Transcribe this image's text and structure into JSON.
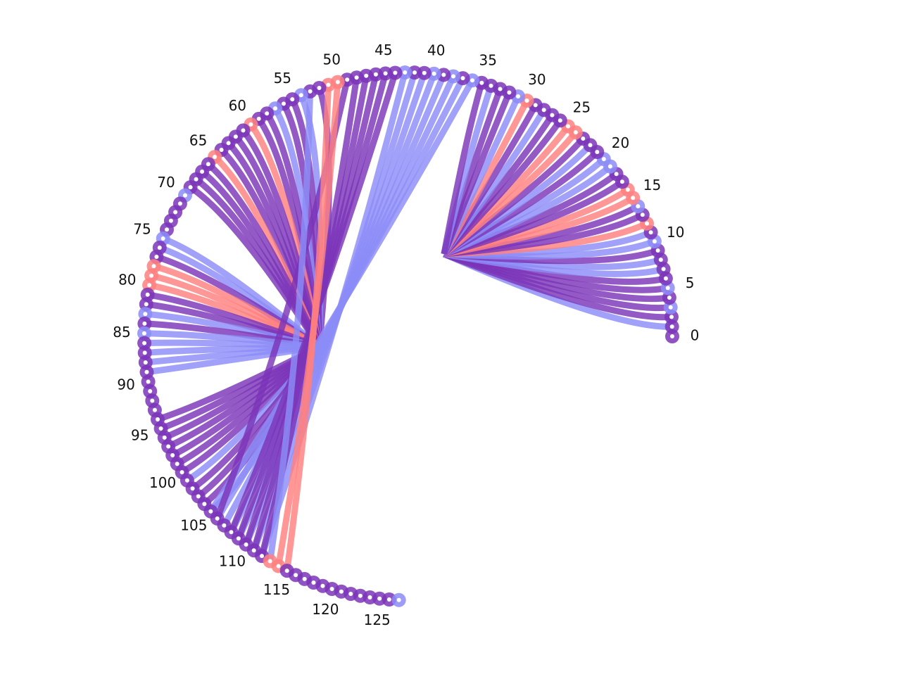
{
  "diagram": {
    "type": "arc-chord",
    "node_count": 128,
    "tick_labels": [
      "0",
      "5",
      "10",
      "15",
      "20",
      "25",
      "30",
      "35",
      "40",
      "45",
      "50",
      "55",
      "60",
      "65",
      "70",
      "75",
      "80",
      "85",
      "90",
      "95",
      "100",
      "105",
      "110",
      "115",
      "120",
      "125"
    ],
    "colors": {
      "purple": "#7b35b8",
      "blue": "#8c8cf8",
      "red": "#ff8080",
      "center_white": "#ffffff"
    },
    "node_rings": [
      "purple",
      "purple",
      "purple",
      "blue",
      "purple",
      "blue",
      "purple",
      "purple",
      "purple",
      "purple",
      "blue",
      "purple",
      "red",
      "purple",
      "blue",
      "red",
      "red",
      "purple",
      "purple",
      "blue",
      "blue",
      "purple",
      "purple",
      "purple",
      "red",
      "red",
      "purple",
      "purple",
      "purple",
      "purple",
      "red",
      "blue",
      "purple",
      "purple",
      "purple",
      "purple",
      "blue",
      "purple",
      "blue",
      "purple",
      "blue",
      "purple",
      "purple",
      "blue",
      "purple",
      "purple",
      "purple",
      "purple",
      "purple",
      "purple",
      "red",
      "red",
      "purple",
      "purple",
      "blue",
      "purple",
      "purple",
      "blue",
      "purple",
      "purple",
      "red",
      "purple",
      "purple",
      "purple",
      "purple",
      "red",
      "purple",
      "purple",
      "purple",
      "purple",
      "blue",
      "purple",
      "purple",
      "purple",
      "purple",
      "blue",
      "purple",
      "purple",
      "red",
      "red",
      "red",
      "purple",
      "purple",
      "blue",
      "purple",
      "blue",
      "purple",
      "purple",
      "purple",
      "purple",
      "purple",
      "purple",
      "purple",
      "purple",
      "purple",
      "purple",
      "purple",
      "purple",
      "purple",
      "purple",
      "purple",
      "purple",
      "purple",
      "purple",
      "purple",
      "purple",
      "purple",
      "purple",
      "purple",
      "purple",
      "purple",
      "purple",
      "purple",
      "red",
      "red",
      "purple",
      "purple",
      "purple",
      "purple",
      "purple",
      "purple",
      "purple",
      "purple",
      "purple",
      "purple",
      "purple",
      "purple",
      "blue"
    ],
    "groups": [
      {
        "hub": 31.5,
        "members": [
          {
            "node": 1,
            "color": "blue"
          },
          {
            "node": 2,
            "color": "purple"
          },
          {
            "node": 3,
            "color": "purple"
          },
          {
            "node": 4,
            "color": "purple"
          },
          {
            "node": 5,
            "color": "purple"
          },
          {
            "node": 6,
            "color": "purple"
          },
          {
            "node": 7,
            "color": "blue"
          },
          {
            "node": 8,
            "color": "blue"
          },
          {
            "node": 9,
            "color": "purple"
          },
          {
            "node": 10,
            "color": "blue"
          },
          {
            "node": 11,
            "color": "blue"
          },
          {
            "node": 12,
            "color": "red"
          },
          {
            "node": 13,
            "color": "purple"
          },
          {
            "node": 14,
            "color": "purple"
          },
          {
            "node": 15,
            "color": "red"
          },
          {
            "node": 16,
            "color": "red"
          },
          {
            "node": 17,
            "color": "purple"
          },
          {
            "node": 18,
            "color": "purple"
          },
          {
            "node": 19,
            "color": "blue"
          },
          {
            "node": 20,
            "color": "blue"
          },
          {
            "node": 21,
            "color": "purple"
          },
          {
            "node": 22,
            "color": "blue"
          },
          {
            "node": 23,
            "color": "purple"
          },
          {
            "node": 24,
            "color": "red"
          },
          {
            "node": 25,
            "color": "red"
          },
          {
            "node": 26,
            "color": "purple"
          },
          {
            "node": 27,
            "color": "purple"
          },
          {
            "node": 28,
            "color": "blue"
          },
          {
            "node": 29,
            "color": "purple"
          },
          {
            "node": 30,
            "color": "red"
          },
          {
            "node": 31,
            "color": "blue"
          },
          {
            "node": 32,
            "color": "purple"
          },
          {
            "node": 33,
            "color": "purple"
          },
          {
            "node": 34,
            "color": "blue"
          },
          {
            "node": 35,
            "color": "purple"
          }
        ]
      },
      {
        "hub": 88.5,
        "members": [
          {
            "node": 52,
            "color": "purple"
          },
          {
            "node": 54,
            "color": "blue"
          },
          {
            "node": 55,
            "color": "purple"
          },
          {
            "node": 56,
            "color": "purple"
          },
          {
            "node": 57,
            "color": "blue"
          },
          {
            "node": 58,
            "color": "purple"
          },
          {
            "node": 59,
            "color": "purple"
          },
          {
            "node": 60,
            "color": "red"
          },
          {
            "node": 61,
            "color": "purple"
          },
          {
            "node": 62,
            "color": "purple"
          },
          {
            "node": 63,
            "color": "purple"
          },
          {
            "node": 64,
            "color": "purple"
          },
          {
            "node": 65,
            "color": "red"
          },
          {
            "node": 66,
            "color": "purple"
          },
          {
            "node": 67,
            "color": "purple"
          },
          {
            "node": 68,
            "color": "purple"
          },
          {
            "node": 69,
            "color": "purple"
          },
          {
            "node": 75,
            "color": "blue"
          },
          {
            "node": 76,
            "color": "blue"
          },
          {
            "node": 77,
            "color": "purple"
          },
          {
            "node": 78,
            "color": "red"
          },
          {
            "node": 79,
            "color": "red"
          },
          {
            "node": 80,
            "color": "red"
          },
          {
            "node": 81,
            "color": "purple"
          },
          {
            "node": 82,
            "color": "purple"
          },
          {
            "node": 83,
            "color": "blue"
          },
          {
            "node": 84,
            "color": "purple"
          },
          {
            "node": 85,
            "color": "blue"
          },
          {
            "node": 86,
            "color": "blue"
          },
          {
            "node": 87,
            "color": "blue"
          },
          {
            "node": 88,
            "color": "blue"
          },
          {
            "node": 89,
            "color": "blue"
          },
          {
            "node": 94,
            "color": "purple"
          },
          {
            "node": 95,
            "color": "purple"
          },
          {
            "node": 96,
            "color": "purple"
          },
          {
            "node": 97,
            "color": "purple"
          },
          {
            "node": 98,
            "color": "purple"
          },
          {
            "node": 99,
            "color": "purple"
          },
          {
            "node": 100,
            "color": "purple"
          },
          {
            "node": 101,
            "color": "blue"
          },
          {
            "node": 102,
            "color": "purple"
          },
          {
            "node": 103,
            "color": "purple"
          },
          {
            "node": 104,
            "color": "purple"
          },
          {
            "node": 105,
            "color": "blue"
          }
        ]
      }
    ],
    "links": [
      {
        "a": 36,
        "b": 105,
        "color": "blue"
      },
      {
        "a": 37,
        "b": 106,
        "color": "blue"
      },
      {
        "a": 38,
        "b": 107,
        "color": "blue"
      },
      {
        "a": 39,
        "b": 108,
        "color": "blue"
      },
      {
        "a": 40,
        "b": 109,
        "color": "blue"
      },
      {
        "a": 41,
        "b": 110,
        "color": "blue"
      },
      {
        "a": 42,
        "b": 111,
        "color": "blue"
      },
      {
        "a": 43,
        "b": 112,
        "color": "blue"
      },
      {
        "a": 44,
        "b": 108,
        "color": "purple"
      },
      {
        "a": 45,
        "b": 109,
        "color": "purple"
      },
      {
        "a": 46,
        "b": 110,
        "color": "purple"
      },
      {
        "a": 47,
        "b": 111,
        "color": "purple"
      },
      {
        "a": 48,
        "b": 112,
        "color": "purple"
      },
      {
        "a": 49,
        "b": 106,
        "color": "purple"
      },
      {
        "a": 50,
        "b": 114,
        "color": "red"
      },
      {
        "a": 51,
        "b": 115,
        "color": "red"
      },
      {
        "a": 53,
        "b": 113,
        "color": "blue"
      }
    ]
  }
}
